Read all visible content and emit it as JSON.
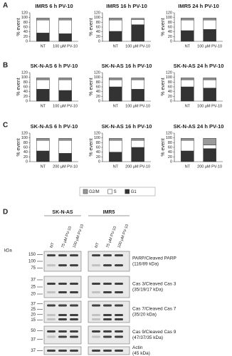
{
  "panels": [
    "A",
    "B",
    "C",
    "D"
  ],
  "chart_data": [
    {
      "type": "bar",
      "stacked": true,
      "title": "IMR5 6 h PV-10",
      "ylabel": "% event",
      "categories": [
        "NT",
        "100 µM PV-10"
      ],
      "ylim": [
        0,
        120
      ],
      "yticks": [
        0,
        20,
        40,
        60,
        80,
        100,
        120
      ],
      "series": [
        {
          "name": "G1",
          "color": "#333333",
          "values": [
            35,
            32
          ]
        },
        {
          "name": "S",
          "color": "#ffffff",
          "values": [
            55,
            58
          ]
        },
        {
          "name": "G2/M",
          "color": "#999999",
          "values": [
            8,
            8
          ]
        }
      ]
    },
    {
      "type": "bar",
      "stacked": true,
      "title": "IMR5 16 h PV-10",
      "ylabel": "% event",
      "categories": [
        "NT",
        "100 µM PV-10"
      ],
      "ylim": [
        0,
        120
      ],
      "yticks": [
        0,
        20,
        40,
        60,
        80,
        100,
        120
      ],
      "series": [
        {
          "name": "G1",
          "color": "#333333",
          "values": [
            42,
            70
          ]
        },
        {
          "name": "S",
          "color": "#ffffff",
          "values": [
            48,
            22
          ]
        },
        {
          "name": "G2/M",
          "color": "#999999",
          "values": [
            8,
            5
          ]
        }
      ]
    },
    {
      "type": "bar",
      "stacked": true,
      "title": "IMR5 24 h PV-10",
      "ylabel": "% event",
      "categories": [
        "NT",
        "100 µM PV-10"
      ],
      "ylim": [
        0,
        120
      ],
      "yticks": [
        0,
        20,
        40,
        60,
        80,
        100,
        120
      ],
      "series": [
        {
          "name": "G1",
          "color": "#333333",
          "values": [
            45,
            50
          ]
        },
        {
          "name": "S",
          "color": "#ffffff",
          "values": [
            45,
            40
          ]
        },
        {
          "name": "G2/M",
          "color": "#999999",
          "values": [
            8,
            8
          ]
        }
      ]
    },
    {
      "type": "bar",
      "stacked": true,
      "title": "SK-N-AS 6 h PV-10",
      "ylabel": "% event",
      "categories": [
        "NT",
        "100 µM PV-10"
      ],
      "ylim": [
        0,
        120
      ],
      "yticks": [
        0,
        20,
        40,
        60,
        80,
        100,
        120
      ],
      "series": [
        {
          "name": "G1",
          "color": "#333333",
          "values": [
            50,
            45
          ]
        },
        {
          "name": "S",
          "color": "#ffffff",
          "values": [
            40,
            45
          ]
        },
        {
          "name": "G2/M",
          "color": "#999999",
          "values": [
            8,
            8
          ]
        }
      ]
    },
    {
      "type": "bar",
      "stacked": true,
      "title": "SK-N-AS 16 h PV-10",
      "ylabel": "% event",
      "categories": [
        "NT",
        "100 µM PV-10"
      ],
      "ylim": [
        0,
        120
      ],
      "yticks": [
        0,
        20,
        40,
        60,
        80,
        100,
        120
      ],
      "series": [
        {
          "name": "G1",
          "color": "#333333",
          "values": [
            60,
            50
          ]
        },
        {
          "name": "S",
          "color": "#ffffff",
          "values": [
            30,
            40
          ]
        },
        {
          "name": "G2/M",
          "color": "#999999",
          "values": [
            8,
            8
          ]
        }
      ]
    },
    {
      "type": "bar",
      "stacked": true,
      "title": "SK-N-AS 24 h PV-10",
      "ylabel": "% event",
      "categories": [
        "NT",
        "100 µM PV-10"
      ],
      "ylim": [
        0,
        120
      ],
      "yticks": [
        0,
        20,
        40,
        60,
        80,
        100,
        120
      ],
      "series": [
        {
          "name": "G1",
          "color": "#333333",
          "values": [
            60,
            55
          ]
        },
        {
          "name": "S",
          "color": "#ffffff",
          "values": [
            30,
            35
          ]
        },
        {
          "name": "G2/M",
          "color": "#999999",
          "values": [
            8,
            8
          ]
        }
      ]
    },
    {
      "type": "bar",
      "stacked": true,
      "title": "SK-N-AS 6 h PV-10",
      "ylabel": "% event",
      "categories": [
        "NT",
        "200 µM PV-10"
      ],
      "ylim": [
        0,
        120
      ],
      "yticks": [
        0,
        20,
        40,
        60,
        80,
        100,
        120
      ],
      "series": [
        {
          "name": "G1",
          "color": "#333333",
          "values": [
            45,
            35
          ]
        },
        {
          "name": "S",
          "color": "#ffffff",
          "values": [
            45,
            55
          ]
        },
        {
          "name": "G2/M",
          "color": "#999999",
          "values": [
            8,
            8
          ]
        }
      ]
    },
    {
      "type": "bar",
      "stacked": true,
      "title": "SK-N-AS 16 h PV-10",
      "ylabel": "% event",
      "categories": [
        "NT",
        "200 µM PV-10"
      ],
      "ylim": [
        0,
        120
      ],
      "yticks": [
        0,
        20,
        40,
        60,
        80,
        100,
        120
      ],
      "series": [
        {
          "name": "G1",
          "color": "#333333",
          "values": [
            40,
            60
          ]
        },
        {
          "name": "S",
          "color": "#ffffff",
          "values": [
            50,
            30
          ]
        },
        {
          "name": "G2/M",
          "color": "#999999",
          "values": [
            8,
            8
          ]
        }
      ]
    },
    {
      "type": "bar",
      "stacked": true,
      "title": "SK-N-AS 24 h PV-10",
      "ylabel": "% event",
      "categories": [
        "NT",
        "200 µM PV-10"
      ],
      "ylim": [
        0,
        120
      ],
      "yticks": [
        0,
        20,
        40,
        60,
        80,
        100,
        120
      ],
      "series": [
        {
          "name": "G1",
          "color": "#333333",
          "values": [
            45,
            55
          ]
        },
        {
          "name": "S",
          "color": "#ffffff",
          "values": [
            45,
            15
          ]
        },
        {
          "name": "G2/M",
          "color": "#999999",
          "values": [
            8,
            28
          ]
        }
      ]
    }
  ],
  "blot": {
    "kda_label": "kDa",
    "groups": [
      {
        "name": "SK-N-AS",
        "lanes": [
          "NT",
          "75 µM PV-10",
          "100 µM PV-10"
        ]
      },
      {
        "name": "IMR5",
        "lanes": [
          "NT",
          "75 µM PV-10",
          "100 µM PV-10"
        ]
      }
    ],
    "rows": [
      {
        "markers": [
          150,
          100,
          75
        ],
        "label": "PARP/Cleaved PARP",
        "sublabel": "(116/89 kDa)"
      },
      {
        "markers": [
          37,
          25,
          20
        ],
        "label": "Cas 3/Cleaved Cas 3",
        "sublabel": "(35/19/17 kDa)"
      },
      {
        "markers": [
          37,
          25,
          20,
          15
        ],
        "label": "Cas 7/Cleaved Cas 7",
        "sublabel": "(35/20 kDa)"
      },
      {
        "markers": [
          50,
          37
        ],
        "label": "Cas 9/Cleaved Cas 9",
        "sublabel": "(47/37/35 kDa)"
      },
      {
        "markers": [
          37
        ],
        "label": "Actin",
        "sublabel": "(45 kDa)"
      }
    ]
  }
}
